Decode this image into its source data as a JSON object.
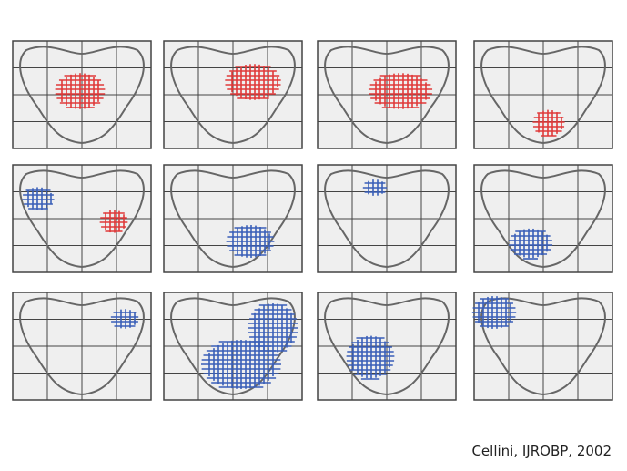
{
  "caption": "Cellini, IJROBP, 2002"
}
